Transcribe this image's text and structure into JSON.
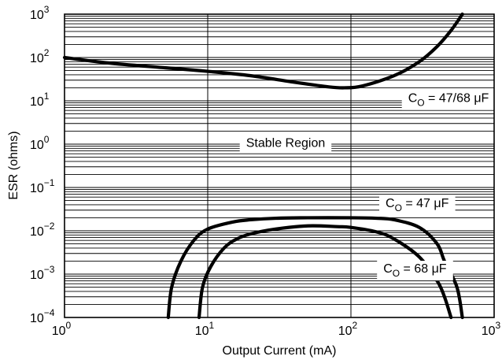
{
  "chart_data": {
    "type": "line",
    "xlabel": "Output Current (mA)",
    "ylabel": "ESR (ohms)",
    "x_scale": "log",
    "y_scale": "log",
    "xlim": [
      1,
      1000
    ],
    "ylim": [
      0.0001,
      1000
    ],
    "x_ticks": [
      {
        "base": "10",
        "exp": "0"
      },
      {
        "base": "10",
        "exp": "1"
      },
      {
        "base": "10",
        "exp": "2"
      },
      {
        "base": "10",
        "exp": "3"
      }
    ],
    "y_ticks": [
      {
        "base": "10",
        "exp": "3"
      },
      {
        "base": "10",
        "exp": "2"
      },
      {
        "base": "10",
        "exp": "1"
      },
      {
        "base": "10",
        "exp": "0"
      },
      {
        "base": "10",
        "exp": "−1"
      },
      {
        "base": "10",
        "exp": "−2"
      },
      {
        "base": "10",
        "exp": "−3"
      },
      {
        "base": "10",
        "exp": "−4"
      }
    ],
    "grid": true,
    "series": [
      {
        "x": [
          1,
          2,
          5,
          10,
          20,
          40,
          70,
          90,
          120,
          200,
          300,
          400,
          500,
          600
        ],
        "y": [
          100,
          75,
          58,
          48,
          38,
          27,
          21,
          20,
          22,
          38,
          80,
          180,
          420,
          1000
        ]
      },
      {
        "x": [
          5.3,
          5.6,
          6.5,
          8,
          10,
          15,
          20,
          30,
          50,
          100,
          150,
          200,
          300,
          400,
          450,
          550,
          600
        ],
        "y": [
          0.0001,
          0.0005,
          0.002,
          0.006,
          0.011,
          0.016,
          0.018,
          0.0195,
          0.02,
          0.02,
          0.0195,
          0.018,
          0.012,
          0.005,
          0.002,
          0.0005,
          0.0001
        ]
      },
      {
        "x": [
          8.7,
          9.2,
          10.5,
          13,
          16,
          20,
          30,
          50,
          80,
          100,
          150,
          200,
          300,
          400,
          450,
          500
        ],
        "y": [
          0.0001,
          0.0005,
          0.0015,
          0.004,
          0.0065,
          0.0085,
          0.011,
          0.013,
          0.0125,
          0.012,
          0.0095,
          0.0065,
          0.0025,
          0.0007,
          0.0003,
          0.0001
        ]
      }
    ],
    "annotations": [
      {
        "text_prefix": "C",
        "text_sub": "O",
        "text_suffix": " = 47/68 μF",
        "x": 480,
        "y": 12
      },
      {
        "text": "Stable Region",
        "x": 35,
        "y": 1.1
      },
      {
        "text_prefix": "C",
        "text_sub": "O",
        "text_suffix": " = 47 μF",
        "x": 290,
        "y": 0.045
      },
      {
        "text_prefix": "C",
        "text_sub": "O",
        "text_suffix": " = 68 μF",
        "x": 280,
        "y": 0.0014
      }
    ]
  }
}
